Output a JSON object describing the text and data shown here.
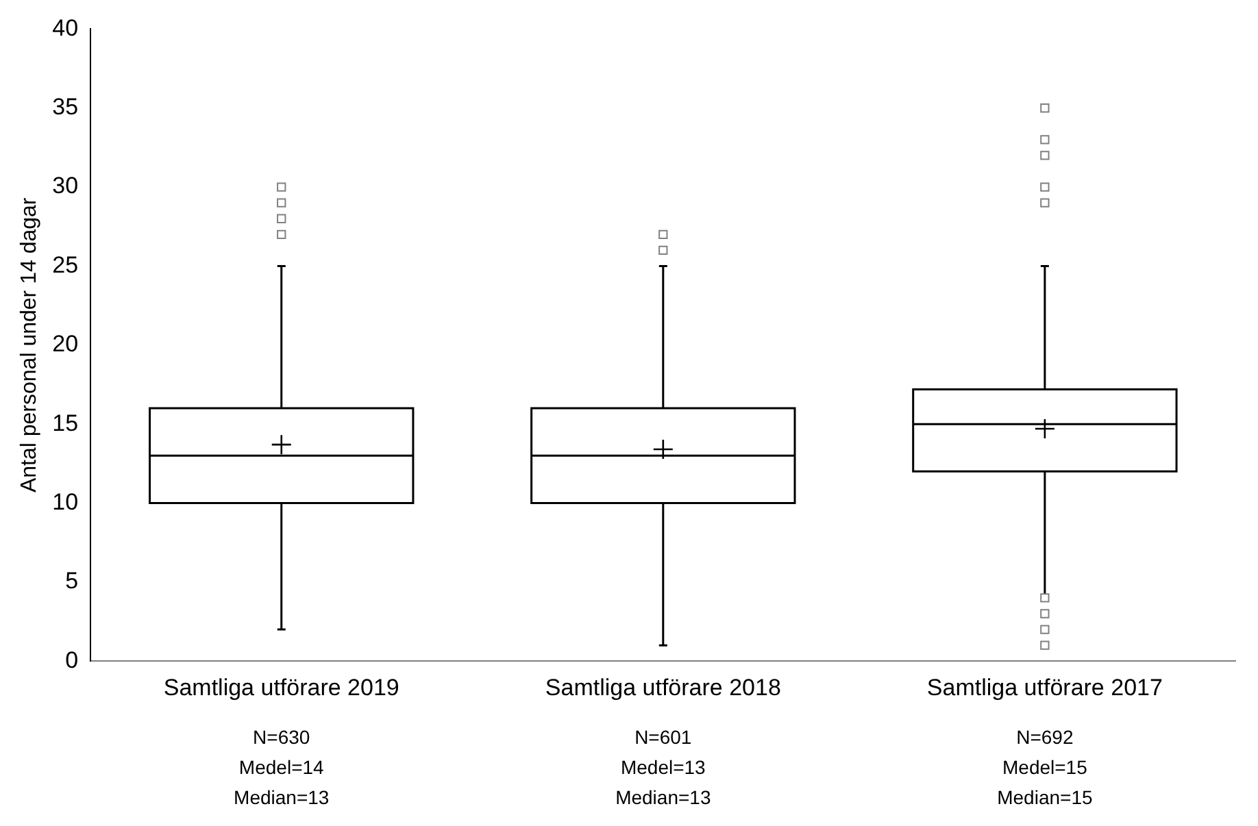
{
  "chart_data": {
    "type": "box",
    "ylabel": "Antal personal under 14 dagar",
    "categories": [
      "Samtliga utförare 2019",
      "Samtliga utförare 2018",
      "Samtliga utförare 2017"
    ],
    "boxes": [
      {
        "low": 2,
        "q1": 10,
        "median": 13,
        "q3": 16,
        "high": 25,
        "mean": 13.7,
        "outliers": [
          27,
          28,
          29,
          30
        ]
      },
      {
        "low": 1,
        "q1": 10,
        "median": 13,
        "q3": 16,
        "high": 25,
        "mean": 13.4,
        "outliers": [
          26,
          27
        ]
      },
      {
        "low": 4,
        "q1": 12,
        "median": 15,
        "q3": 17.2,
        "high": 25,
        "mean": 14.7,
        "outliers": [
          4,
          3,
          2,
          1,
          29,
          30,
          32,
          33,
          35
        ]
      }
    ],
    "color": "#000000",
    "ylim": [
      0,
      40
    ],
    "yticks": [
      0,
      5,
      10,
      15,
      20,
      25,
      30,
      35,
      40
    ],
    "grid": false,
    "annotations": [
      "N=630",
      "Medel=14",
      "Median=13",
      "N=601",
      "Medel=13",
      "Median=13",
      "N=692",
      "Medel=15",
      "Median=15"
    ]
  }
}
